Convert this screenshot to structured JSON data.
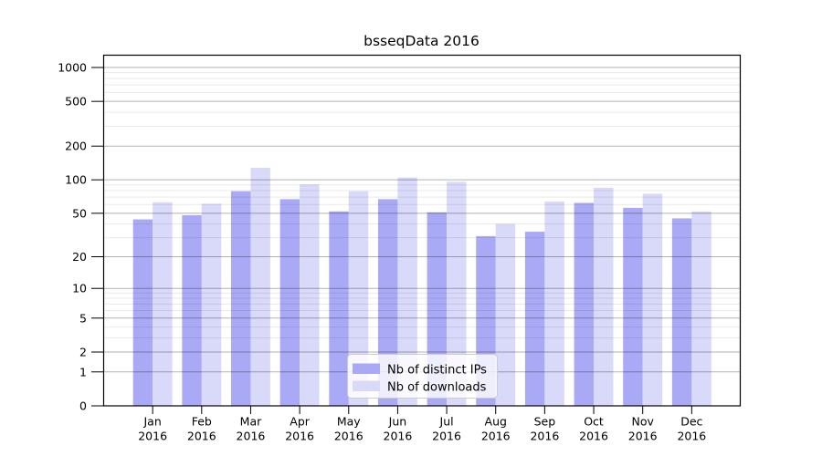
{
  "figure": {
    "title": "bsseqData 2016"
  },
  "chart_data": {
    "type": "bar",
    "title": "bsseqData 2016",
    "categories": [
      "Jan",
      "Feb",
      "Mar",
      "Apr",
      "May",
      "Jun",
      "Jul",
      "Aug",
      "Sep",
      "Oct",
      "Nov",
      "Dec"
    ],
    "category_year": "2016",
    "series": [
      {
        "name": "Nb of distinct IPs",
        "color": "#a9a9f5",
        "values": [
          44,
          48,
          79,
          67,
          52,
          67,
          51,
          31,
          34,
          62,
          56,
          45
        ]
      },
      {
        "name": "Nb of downloads",
        "color": "#d9d9f9",
        "values": [
          63,
          61,
          128,
          91,
          79,
          105,
          96,
          40,
          64,
          85,
          75,
          52
        ]
      }
    ],
    "xlabel": "",
    "ylabel": "",
    "y_scale": "log10(value+1)",
    "y_axis_max": 1300,
    "y_major_ticks": [
      0,
      1,
      2,
      5,
      10,
      20,
      50,
      100,
      200,
      500,
      1000
    ],
    "y_tick_labels": [
      "0",
      "1",
      "2",
      "5",
      "10",
      "20",
      "50",
      "100",
      "200",
      "500",
      "1000"
    ],
    "y_minor_ticks": [
      3,
      4,
      6,
      7,
      8,
      9,
      30,
      40,
      60,
      70,
      80,
      90,
      300,
      400,
      600,
      700,
      800,
      900
    ],
    "grid": true,
    "legend_position": "lower-center",
    "colors": {
      "major_grid": "#b3b3b3",
      "minor_grid": "#ebebeb",
      "axis_frame": "#000000",
      "background": "#ffffff",
      "legend_border": "#cccccc",
      "legend_background": "#ffffff"
    }
  }
}
